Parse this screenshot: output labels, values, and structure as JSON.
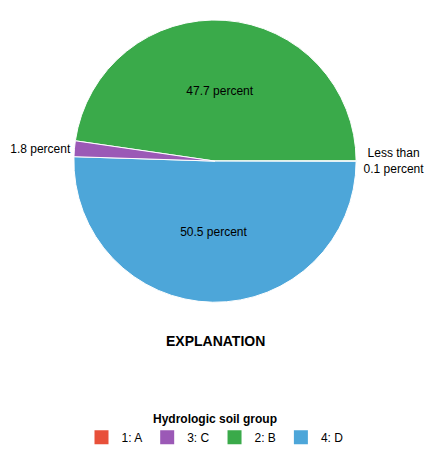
{
  "chart_data": {
    "type": "pie",
    "title": "EXPLANATION",
    "values": [
      47.7,
      0.05,
      50.5,
      1.8
    ],
    "colors": [
      "#3aaa4a",
      "#3aaa4a",
      "#4da6d9",
      "#9b59b6"
    ],
    "value_labels": [
      "47.7 percent",
      "Less than\n0.1 percent",
      "50.5 percent",
      "1.8 percent"
    ],
    "legend_title": "Hydrologic soil group",
    "legend_items": [
      {
        "name": "1: A",
        "color": "#e8503a"
      },
      {
        "name": "3: C",
        "color": "#9b59b6"
      },
      {
        "name": "2: B",
        "color": "#3aaa4a"
      },
      {
        "name": "4: D",
        "color": "#4da6d9"
      }
    ]
  }
}
